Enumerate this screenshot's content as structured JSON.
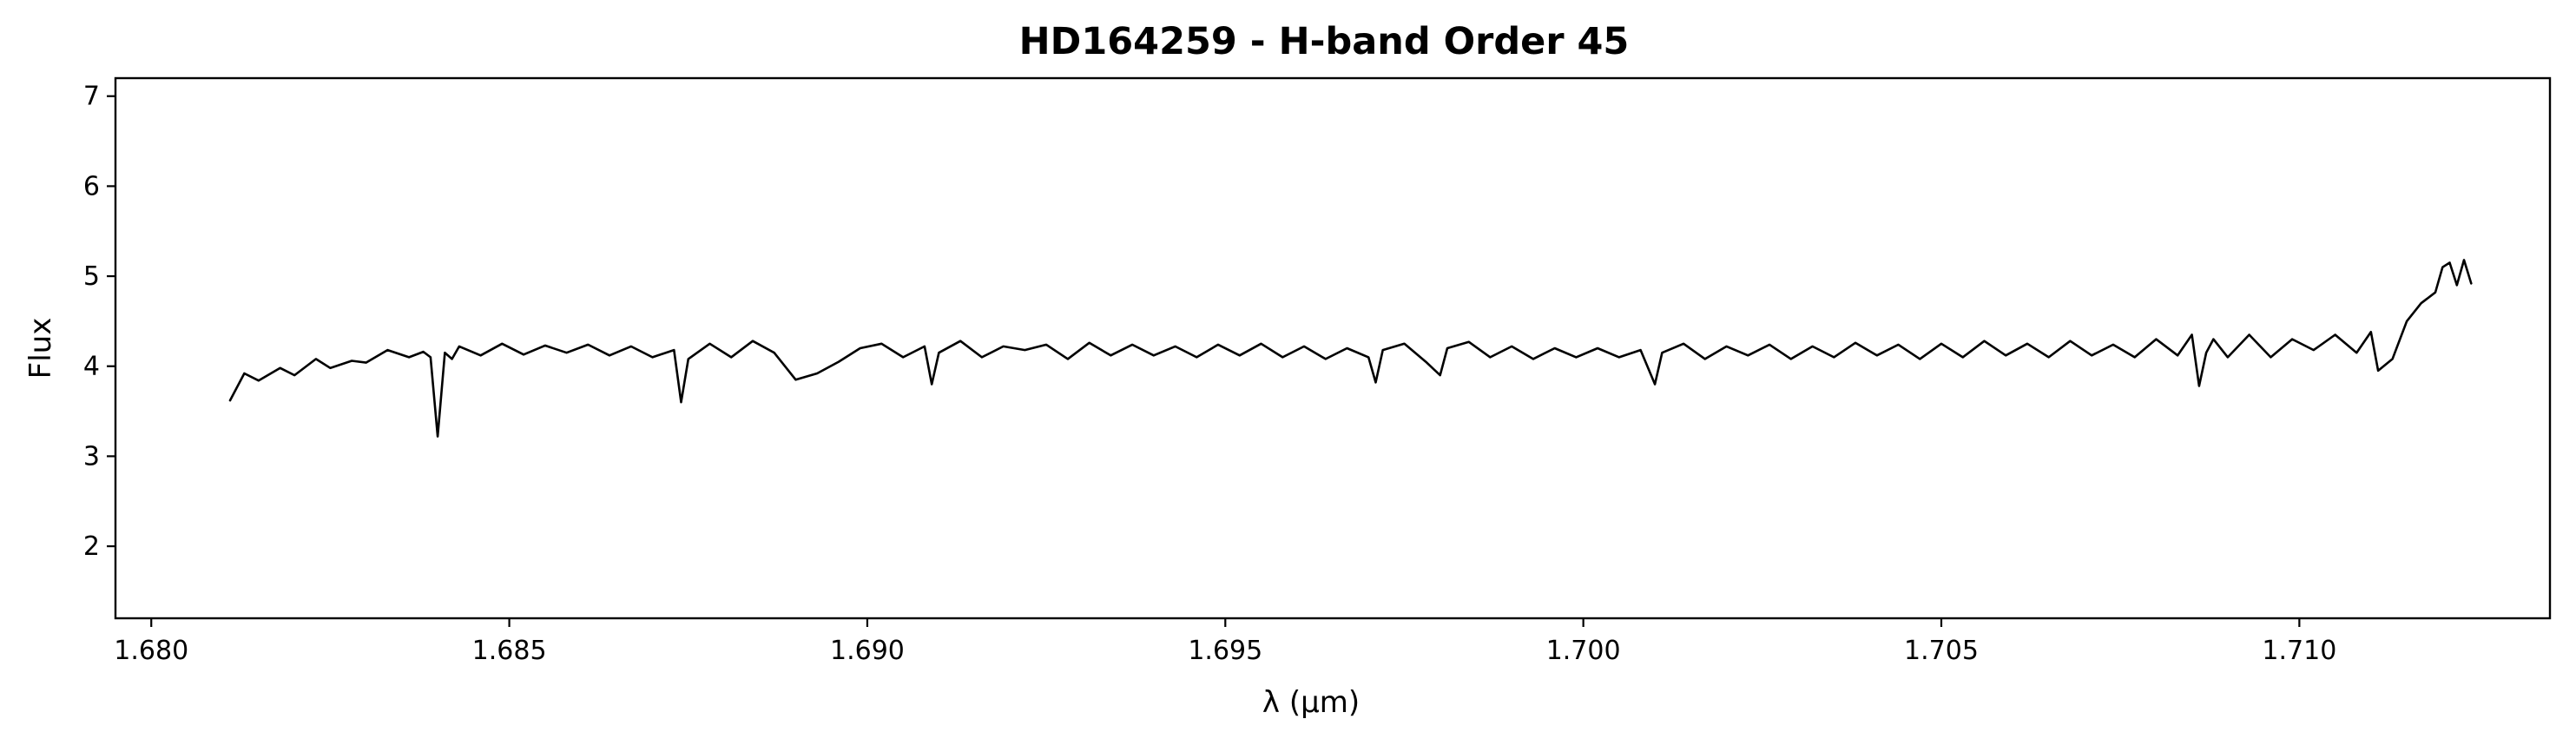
{
  "chart_data": {
    "type": "line",
    "title": "HD164259 - H-band Order 45",
    "xlabel": "λ (μm)",
    "ylabel": "Flux",
    "xlim": [
      1.6795,
      1.7135
    ],
    "ylim": [
      1.2,
      7.2
    ],
    "xticks": [
      1.68,
      1.685,
      1.69,
      1.695,
      1.7,
      1.705,
      1.71
    ],
    "xtick_labels": [
      "1.680",
      "1.685",
      "1.690",
      "1.695",
      "1.700",
      "1.705",
      "1.710"
    ],
    "yticks": [
      2,
      3,
      4,
      5,
      6,
      7
    ],
    "ytick_labels": [
      "2",
      "3",
      "4",
      "5",
      "6",
      "7"
    ],
    "grid": false,
    "legend": "none",
    "line_color": "#000000",
    "series": [
      {
        "x": [
          1.6811,
          1.6813,
          1.6815,
          1.6818,
          1.682,
          1.6823,
          1.6825,
          1.6828,
          1.683,
          1.6833,
          1.6836,
          1.6838,
          1.6839,
          1.684,
          1.6841,
          1.6842,
          1.6843,
          1.6846,
          1.6849,
          1.6852,
          1.6855,
          1.6858,
          1.6861,
          1.6864,
          1.6867,
          1.687,
          1.6873,
          1.6874,
          1.6875,
          1.6878,
          1.6881,
          1.6884,
          1.6887,
          1.689,
          1.6893,
          1.6896,
          1.6899,
          1.6902,
          1.6905,
          1.6908,
          1.6909,
          1.691,
          1.6913,
          1.6916,
          1.6919,
          1.6922,
          1.6925,
          1.6928,
          1.6931,
          1.6934,
          1.6937,
          1.694,
          1.6943,
          1.6946,
          1.6949,
          1.6952,
          1.6955,
          1.6958,
          1.6961,
          1.6964,
          1.6967,
          1.697,
          1.6971,
          1.6972,
          1.6975,
          1.6978,
          1.698,
          1.6981,
          1.6984,
          1.6987,
          1.699,
          1.6993,
          1.6996,
          1.6999,
          1.7002,
          1.7005,
          1.7008,
          1.701,
          1.7011,
          1.7014,
          1.7017,
          1.702,
          1.7023,
          1.7026,
          1.7029,
          1.7032,
          1.7035,
          1.7038,
          1.7041,
          1.7044,
          1.7047,
          1.705,
          1.7053,
          1.7056,
          1.7059,
          1.7062,
          1.7065,
          1.7068,
          1.7071,
          1.7074,
          1.7077,
          1.708,
          1.7083,
          1.7085,
          1.7086,
          1.7087,
          1.7088,
          1.709,
          1.7093,
          1.7096,
          1.7099,
          1.7102,
          1.7105,
          1.7108,
          1.711,
          1.7111,
          1.7113,
          1.7115,
          1.7117,
          1.7119,
          1.712,
          1.7121,
          1.7122,
          1.7123,
          1.7124
        ],
        "y": [
          3.62,
          3.92,
          3.84,
          3.98,
          3.9,
          4.08,
          3.98,
          4.06,
          4.04,
          4.18,
          4.1,
          4.16,
          4.1,
          3.22,
          4.15,
          4.08,
          4.22,
          4.12,
          4.25,
          4.13,
          4.23,
          4.15,
          4.24,
          4.12,
          4.22,
          4.1,
          4.18,
          3.6,
          4.08,
          4.25,
          4.1,
          4.28,
          4.15,
          3.85,
          3.92,
          4.05,
          4.2,
          4.25,
          4.1,
          4.22,
          3.8,
          4.15,
          4.28,
          4.1,
          4.22,
          4.18,
          4.24,
          4.08,
          4.26,
          4.12,
          4.24,
          4.12,
          4.22,
          4.1,
          4.24,
          4.12,
          4.25,
          4.1,
          4.22,
          4.08,
          4.2,
          4.1,
          3.82,
          4.18,
          4.25,
          4.05,
          3.9,
          4.2,
          4.27,
          4.1,
          4.22,
          4.08,
          4.2,
          4.1,
          4.2,
          4.1,
          4.18,
          3.8,
          4.15,
          4.25,
          4.08,
          4.22,
          4.12,
          4.24,
          4.08,
          4.22,
          4.1,
          4.26,
          4.12,
          4.24,
          4.08,
          4.25,
          4.1,
          4.28,
          4.12,
          4.25,
          4.1,
          4.28,
          4.12,
          4.24,
          4.1,
          4.3,
          4.12,
          4.35,
          3.78,
          4.15,
          4.3,
          4.1,
          4.35,
          4.1,
          4.3,
          4.18,
          4.35,
          4.15,
          4.38,
          3.95,
          4.08,
          4.5,
          4.7,
          4.82,
          5.1,
          5.15,
          4.9,
          5.18,
          4.92
        ]
      }
    ]
  }
}
